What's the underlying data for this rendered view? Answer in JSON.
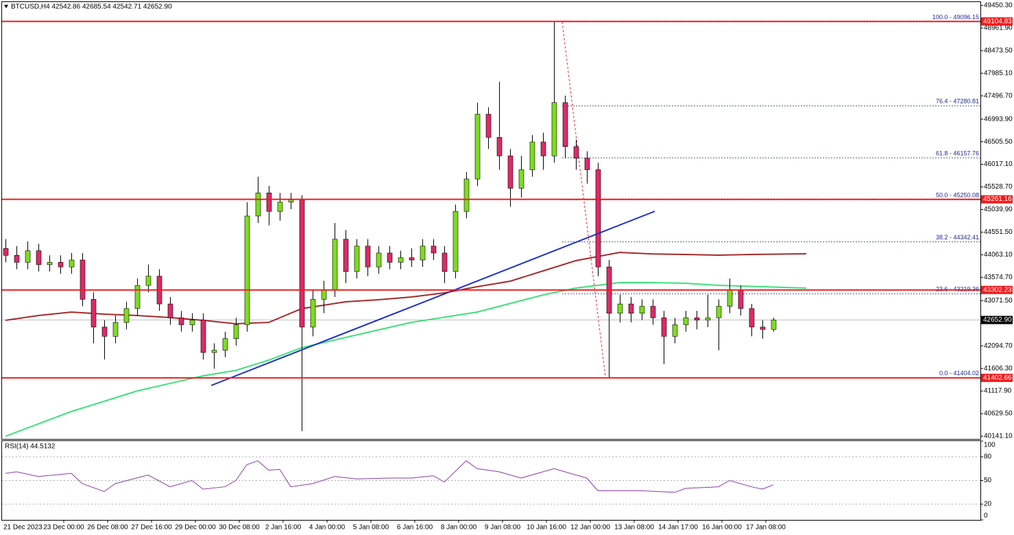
{
  "chart_data": {
    "type": "candlestick",
    "title": "BTCUSD,H4  42542.86 42685.54 42542.71 42652.90",
    "up_color": "#7ddc1f",
    "down_color": "#dc2b66",
    "candles": {
      "open": [
        44200,
        44050,
        43900,
        44150,
        43850,
        43900,
        43800,
        43950,
        43100,
        42500,
        42300,
        42600,
        42900,
        43400,
        43600,
        43000,
        42700,
        42550,
        42650,
        41950,
        42000,
        42250,
        42550,
        44900,
        45400,
        45000,
        45200,
        45250,
        42500,
        43100,
        43300,
        44400,
        43700,
        44250,
        43800,
        44100,
        43900,
        44000,
        43950,
        44250,
        44100,
        43700,
        45000,
        45700,
        47100,
        46600,
        46200,
        45500,
        45900,
        46500,
        46200,
        47350,
        46400,
        46150,
        45900,
        43800,
        42800,
        43000,
        42800,
        42950,
        42700,
        42300,
        42550,
        42700,
        42650,
        42700,
        42950,
        43300,
        42900,
        42500,
        42450
      ],
      "high": [
        44400,
        44250,
        44350,
        44300,
        44050,
        44050,
        44100,
        44100,
        43250,
        42650,
        42750,
        43050,
        43550,
        43850,
        43750,
        43150,
        42850,
        42800,
        42800,
        42150,
        42400,
        42700,
        45200,
        45750,
        45550,
        45400,
        45400,
        45350,
        43300,
        43500,
        44750,
        44600,
        44400,
        44400,
        44250,
        44250,
        44150,
        44200,
        44400,
        44400,
        44250,
        45150,
        45850,
        47350,
        47250,
        47800,
        46350,
        46200,
        46650,
        46700,
        49096.15,
        47500,
        46550,
        46300,
        46050,
        43950,
        43200,
        43150,
        43100,
        43100,
        42850,
        42700,
        42850,
        42850,
        43200,
        43100,
        43550,
        43400,
        43000,
        42650,
        42700
      ],
      "low": [
        43900,
        43750,
        43750,
        43700,
        43700,
        43650,
        43650,
        42950,
        42150,
        41800,
        42150,
        42450,
        42750,
        43250,
        42850,
        42550,
        42400,
        42400,
        41800,
        41600,
        41850,
        42100,
        42400,
        44750,
        44700,
        44800,
        45050,
        40250,
        42300,
        42800,
        43150,
        43450,
        43550,
        43600,
        43650,
        43750,
        43750,
        43800,
        43800,
        43950,
        43450,
        43550,
        44850,
        45550,
        46350,
        45900,
        45100,
        45300,
        45750,
        45900,
        46050,
        46150,
        45900,
        45600,
        43600,
        41404.02,
        42600,
        42600,
        42650,
        42550,
        41700,
        42150,
        42400,
        42450,
        42500,
        42000,
        42800,
        42750,
        42300,
        42250,
        42400
      ],
      "close": [
        44050,
        43900,
        44150,
        43850,
        43900,
        43800,
        43950,
        43100,
        42500,
        42300,
        42600,
        42900,
        43400,
        43600,
        43000,
        42700,
        42550,
        42650,
        41950,
        42000,
        42250,
        42550,
        44900,
        45400,
        45000,
        45200,
        45250,
        42500,
        43100,
        43300,
        44400,
        43700,
        44250,
        43800,
        44100,
        43900,
        44000,
        43950,
        44250,
        44100,
        43700,
        45000,
        45700,
        47100,
        46600,
        46200,
        45500,
        45900,
        46500,
        46200,
        47350,
        46400,
        46150,
        45900,
        43800,
        42800,
        43000,
        42800,
        42950,
        42700,
        42300,
        42550,
        42700,
        42650,
        42700,
        42950,
        43300,
        42900,
        42500,
        42450,
        42650
      ]
    },
    "series": [
      {
        "color": "#a52a2a",
        "x": [
          0,
          3,
          6,
          9,
          12,
          15,
          18,
          21,
          24,
          27,
          31,
          34,
          37,
          40,
          43,
          46,
          49,
          52,
          56,
          59,
          62,
          65,
          68,
          73
        ],
        "values": [
          42646,
          42750,
          42824,
          42780,
          42750,
          42705,
          42646,
          42572,
          42602,
          42898,
          43046,
          43091,
          43150,
          43239,
          43373,
          43491,
          43714,
          43936,
          44114,
          44080,
          44069,
          44054,
          44069,
          44084
        ]
      },
      {
        "color": "#3ee07a",
        "x": [
          0,
          6,
          12,
          18,
          21,
          24,
          27,
          31,
          37,
          43,
          49,
          52,
          56,
          59,
          62,
          65,
          73
        ],
        "values": [
          40141,
          40674,
          41119,
          41445,
          41564,
          41786,
          42053,
          42276,
          42602,
          42824,
          43194,
          43343,
          43461,
          43461,
          43447,
          43402,
          43343
        ]
      }
    ],
    "trendline": {
      "color": "#1c2fc9",
      "x": [
        18.75,
        59.2
      ],
      "values": [
        41238,
        45003
      ]
    },
    "levels": [
      49104.83,
      45261.16,
      43302.23,
      41402.66
    ],
    "level_color": "#f21b1b",
    "current_price": {
      "value": 42652.9,
      "label": "42652.90"
    },
    "fib_line": {
      "x": [
        50.75,
        54.7
      ],
      "values": [
        49096.15,
        41404.02
      ]
    },
    "fib_levels": [
      {
        "value": 49096.15,
        "label": "100.0 - 49096.15"
      },
      {
        "value": 47280.81,
        "label": "76.4 - 47280.81"
      },
      {
        "value": 46157.76,
        "label": "61.8 - 46157.76"
      },
      {
        "value": 45250.08,
        "label": "50.0 - 45250.08"
      },
      {
        "value": 44342.41,
        "label": "38.2 - 44342.41"
      },
      {
        "value": 43219.36,
        "label": "23.6 - 43219.36"
      },
      {
        "value": 41404.02,
        "label": "0.0 - 41404.02"
      }
    ],
    "ylim": [
      40067,
      49524
    ],
    "yticks": [
      {
        "value": 49450.3,
        "label": "49450.30"
      },
      {
        "value": 48961.9,
        "label": "48961.90"
      },
      {
        "value": 48473.5,
        "label": "48473.50"
      },
      {
        "value": 47985.1,
        "label": "47985.10"
      },
      {
        "value": 47496.7,
        "label": "47496.70"
      },
      {
        "value": 46993.9,
        "label": "46993.90"
      },
      {
        "value": 46505.5,
        "label": "46505.50"
      },
      {
        "value": 46017.1,
        "label": "46017.10"
      },
      {
        "value": 45528.7,
        "label": "45528.70"
      },
      {
        "value": 45039.9,
        "label": "45039.90"
      },
      {
        "value": 44551.5,
        "label": "44551.50"
      },
      {
        "value": 44063.1,
        "label": "44063.10"
      },
      {
        "value": 43574.7,
        "label": "43574.70"
      },
      {
        "value": 43071.5,
        "label": "43071.50"
      },
      {
        "value": 42094.7,
        "label": "42094.70"
      },
      {
        "value": 41606.3,
        "label": "41606.30"
      },
      {
        "value": 41117.9,
        "label": "41117.90"
      },
      {
        "value": 40629.5,
        "label": "40629.50"
      },
      {
        "value": 40141.1,
        "label": "40141.10"
      }
    ],
    "xtick_labels": [
      "21 Dec 2023",
      "23 Dec 00:00",
      "26 Dec 08:00",
      "27 Dec 16:00",
      "29 Dec 00:00",
      "30 Dec 08:00",
      "2 Jan 16:00",
      "4 Jan 00:00",
      "5 Jan 08:00",
      "6 Jan 16:00",
      "8 Jan 00:00",
      "9 Jan 08:00",
      "10 Jan 16:00",
      "12 Jan 00:00",
      "13 Jan 08:00",
      "14 Jan 17:00",
      "16 Jan 00:00",
      "17 Jan 08:00"
    ],
    "rsi": {
      "title": "RSI(14) 44.5132",
      "color": "#8a3aa8",
      "ylim": [
        0,
        100
      ],
      "yticks": [
        0,
        20,
        50,
        80,
        100
      ],
      "x": [
        0,
        1,
        3,
        6,
        7,
        9,
        10,
        13,
        15,
        17,
        18,
        20,
        21,
        22,
        23,
        24,
        25,
        26,
        28,
        30,
        32,
        35,
        37,
        39,
        40,
        42,
        43,
        45,
        47,
        49,
        50,
        52,
        53,
        54,
        56,
        58,
        61,
        62,
        65,
        66,
        68,
        69,
        70
      ],
      "values": [
        59,
        61,
        55,
        59,
        46,
        36,
        46,
        57,
        42,
        50,
        39,
        42,
        50,
        70,
        75,
        63,
        64,
        42,
        46,
        55,
        52,
        53,
        53,
        56,
        48,
        75,
        65,
        61,
        53,
        61,
        65,
        57,
        53,
        37,
        37,
        37,
        35,
        40,
        42,
        50,
        42,
        39,
        44.5132
      ]
    }
  }
}
